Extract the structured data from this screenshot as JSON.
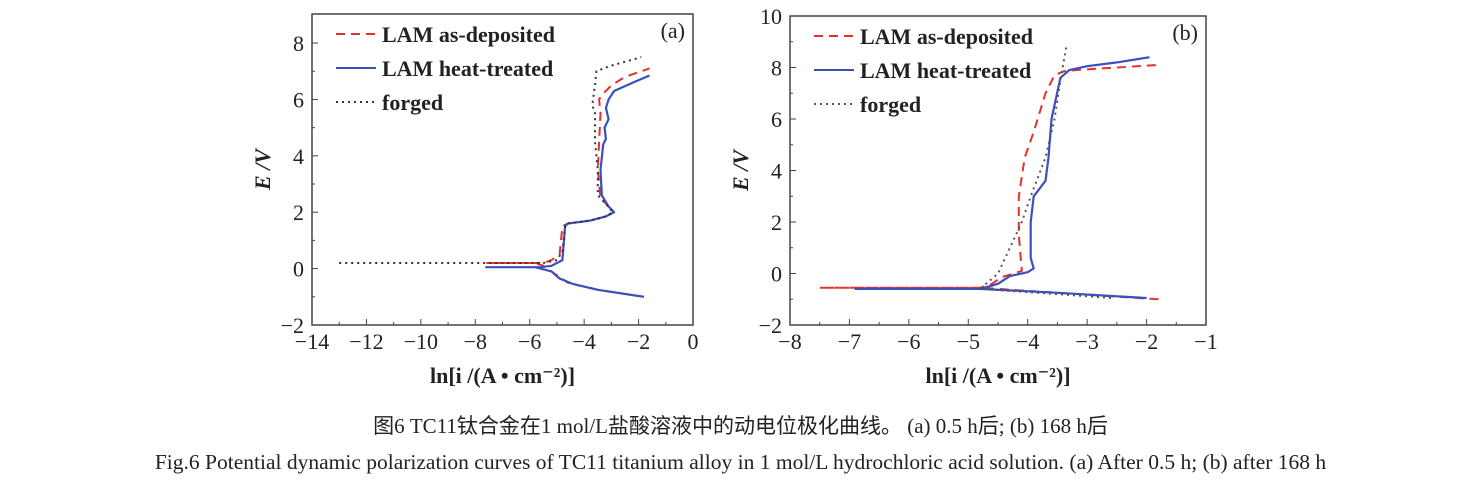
{
  "caption_cn": "图6 TC11钛合金在1 mol/L盐酸溶液中的动电位极化曲线。 (a) 0.5 h后; (b) 168 h后",
  "caption_en": "Fig.6 Potential dynamic polarization curves of TC11 titanium alloy in 1 mol/L hydrochloric acid solution. (a) After 0.5 h; (b) after 168 h",
  "chart_data": [
    {
      "type": "line",
      "panel_label": "(a)",
      "xlabel": "ln[i /(A • cm⁻²)]",
      "ylabel": "E /V",
      "xlim": [
        -14,
        0
      ],
      "ylim": [
        -2,
        9
      ],
      "xticks": [
        -14,
        -12,
        -10,
        -8,
        -6,
        -4,
        -2,
        0
      ],
      "yticks": [
        -2,
        0,
        2,
        4,
        6,
        8
      ],
      "grid": false,
      "legend_position": "top-left",
      "series": [
        {
          "name": "LAM as-deposited",
          "style": "dashed",
          "color": "#e8302a",
          "points": [
            [
              -1.8,
              -1.0
            ],
            [
              -3.5,
              -0.75
            ],
            [
              -4.6,
              -0.5
            ],
            [
              -4.9,
              -0.3
            ],
            [
              -5.5,
              0.1
            ],
            [
              -5.8,
              0.2
            ],
            [
              -7.6,
              0.2
            ],
            [
              -5.5,
              0.2
            ],
            [
              -5.2,
              0.3
            ],
            [
              -4.9,
              0.5
            ],
            [
              -4.8,
              1.5
            ],
            [
              -4.6,
              1.6
            ],
            [
              -3.8,
              1.7
            ],
            [
              -3.2,
              1.85
            ],
            [
              -2.9,
              2.0
            ],
            [
              -3.1,
              2.2
            ],
            [
              -3.4,
              2.5
            ],
            [
              -3.5,
              3.5
            ],
            [
              -3.45,
              4.5
            ],
            [
              -3.4,
              5.5
            ],
            [
              -3.45,
              6.0
            ],
            [
              -3.3,
              6.2
            ],
            [
              -3.0,
              6.5
            ],
            [
              -2.5,
              6.8
            ],
            [
              -1.6,
              7.1
            ]
          ]
        },
        {
          "name": "LAM heat-treated",
          "style": "solid",
          "color": "#3a4fc0",
          "points": [
            [
              -1.8,
              -1.0
            ],
            [
              -3.5,
              -0.75
            ],
            [
              -4.4,
              -0.55
            ],
            [
              -4.9,
              -0.35
            ],
            [
              -5.2,
              -0.1
            ],
            [
              -5.8,
              0.05
            ],
            [
              -7.6,
              0.05
            ],
            [
              -5.6,
              0.05
            ],
            [
              -5.2,
              0.1
            ],
            [
              -4.8,
              0.3
            ],
            [
              -4.7,
              1.5
            ],
            [
              -4.6,
              1.6
            ],
            [
              -3.8,
              1.7
            ],
            [
              -3.2,
              1.85
            ],
            [
              -2.9,
              2.0
            ],
            [
              -3.1,
              2.2
            ],
            [
              -3.35,
              2.6
            ],
            [
              -3.4,
              3.5
            ],
            [
              -3.3,
              4.4
            ],
            [
              -3.2,
              4.6
            ],
            [
              -3.25,
              5.0
            ],
            [
              -3.1,
              5.3
            ],
            [
              -3.2,
              5.7
            ],
            [
              -3.1,
              6.0
            ],
            [
              -2.9,
              6.3
            ],
            [
              -2.2,
              6.6
            ],
            [
              -1.6,
              6.85
            ]
          ]
        },
        {
          "name": "forged",
          "style": "dotted",
          "color": "#333333",
          "points": [
            [
              -13.0,
              0.2
            ],
            [
              -5.5,
              0.2
            ],
            [
              -5.0,
              0.3
            ],
            [
              -4.8,
              0.6
            ],
            [
              -4.7,
              1.5
            ],
            [
              -4.6,
              1.6
            ],
            [
              -3.8,
              1.7
            ],
            [
              -3.2,
              1.85
            ],
            [
              -2.95,
              2.0
            ],
            [
              -3.2,
              2.3
            ],
            [
              -3.5,
              2.6
            ],
            [
              -3.5,
              3.5
            ],
            [
              -3.6,
              4.5
            ],
            [
              -3.6,
              5.5
            ],
            [
              -3.7,
              5.8
            ],
            [
              -3.6,
              6.5
            ],
            [
              -3.55,
              7.0
            ],
            [
              -3.0,
              7.2
            ],
            [
              -1.9,
              7.5
            ]
          ]
        }
      ]
    },
    {
      "type": "line",
      "panel_label": "(b)",
      "xlabel": "ln[i /(A • cm⁻²)]",
      "ylabel": "E /V",
      "xlim": [
        -8,
        -1
      ],
      "ylim": [
        -2,
        10
      ],
      "xticks": [
        -8,
        -7,
        -6,
        -5,
        -4,
        -3,
        -2,
        -1
      ],
      "yticks": [
        -2,
        0,
        2,
        4,
        6,
        8,
        10
      ],
      "grid": false,
      "legend_position": "top-left",
      "series": [
        {
          "name": "LAM as-deposited",
          "style": "dashed",
          "color": "#e8302a",
          "points": [
            [
              -1.8,
              -1.0
            ],
            [
              -2.5,
              -0.9
            ],
            [
              -3.5,
              -0.75
            ],
            [
              -4.8,
              -0.55
            ],
            [
              -7.5,
              -0.55
            ],
            [
              -4.8,
              -0.55
            ],
            [
              -4.6,
              -0.4
            ],
            [
              -4.45,
              -0.15
            ],
            [
              -4.1,
              0.1
            ],
            [
              -4.15,
              1.5
            ],
            [
              -4.15,
              3.0
            ],
            [
              -4.05,
              4.5
            ],
            [
              -3.9,
              5.5
            ],
            [
              -3.7,
              7.0
            ],
            [
              -3.55,
              7.7
            ],
            [
              -3.4,
              7.85
            ],
            [
              -3.2,
              7.9
            ],
            [
              -1.8,
              8.1
            ]
          ]
        },
        {
          "name": "LAM heat-treated",
          "style": "solid",
          "color": "#3a4fc0",
          "points": [
            [
              -2.0,
              -0.95
            ],
            [
              -3.5,
              -0.75
            ],
            [
              -4.8,
              -0.6
            ],
            [
              -6.9,
              -0.6
            ],
            [
              -4.8,
              -0.6
            ],
            [
              -4.5,
              -0.4
            ],
            [
              -4.3,
              -0.1
            ],
            [
              -4.0,
              0.05
            ],
            [
              -3.9,
              0.2
            ],
            [
              -3.95,
              0.6
            ],
            [
              -3.95,
              2.0
            ],
            [
              -3.9,
              3.0
            ],
            [
              -3.7,
              3.6
            ],
            [
              -3.65,
              4.5
            ],
            [
              -3.6,
              6.0
            ],
            [
              -3.45,
              7.6
            ],
            [
              -3.3,
              7.9
            ],
            [
              -3.0,
              8.05
            ],
            [
              -2.5,
              8.2
            ],
            [
              -1.95,
              8.4
            ]
          ]
        },
        {
          "name": "forged",
          "style": "dotted",
          "color": "#555555",
          "points": [
            [
              -2.6,
              -0.95
            ],
            [
              -3.5,
              -0.8
            ],
            [
              -4.8,
              -0.6
            ],
            [
              -4.5,
              0.0
            ],
            [
              -4.3,
              1.0
            ],
            [
              -4.1,
              2.0
            ],
            [
              -3.95,
              3.0
            ],
            [
              -3.7,
              4.5
            ],
            [
              -3.55,
              6.0
            ],
            [
              -3.45,
              7.5
            ],
            [
              -3.35,
              8.8
            ]
          ]
        }
      ]
    }
  ]
}
